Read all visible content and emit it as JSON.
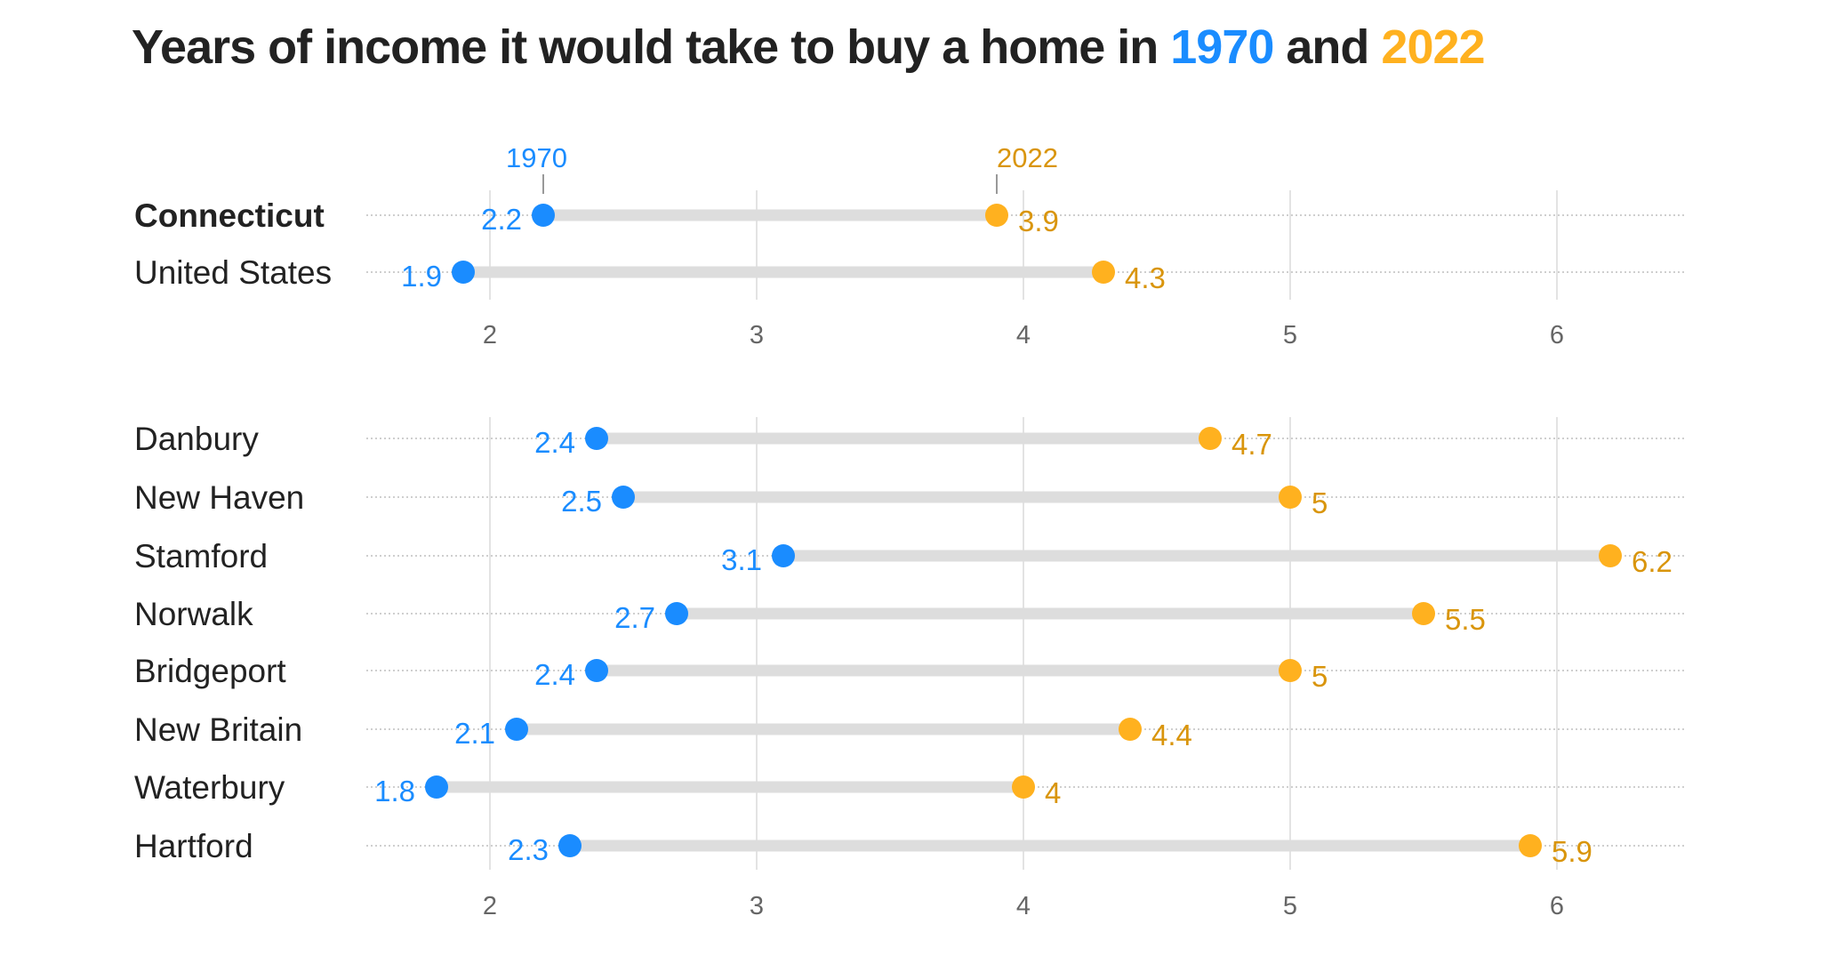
{
  "title": {
    "prefix": "Years of income it would take to buy a home in ",
    "year1": "1970",
    "mid": " and ",
    "year2": "2022"
  },
  "colors": {
    "1970": "#1a8cff",
    "2022": "#ffb11f",
    "label_2022": "#d9950c",
    "bar": "#dddddd"
  },
  "chart_data": [
    {
      "type": "dumbbell",
      "title": "Years of income it would take to buy a home in 1970 and 2022",
      "series_labels": [
        "1970",
        "2022"
      ],
      "xlim": [
        1.6,
        6.5
      ],
      "xticks": [
        2,
        3,
        4,
        5,
        6
      ],
      "grid": true,
      "rows": [
        {
          "label": "Connecticut",
          "bold": true,
          "v1970": 2.2,
          "v2022": 3.9,
          "l1970": "2.2",
          "l2022": "3.9"
        },
        {
          "label": "United States",
          "v1970": 1.9,
          "v2022": 4.3,
          "l1970": "1.9",
          "l2022": "4.3"
        }
      ]
    },
    {
      "type": "dumbbell",
      "xlim": [
        1.6,
        6.5
      ],
      "xticks": [
        2,
        3,
        4,
        5,
        6
      ],
      "grid": true,
      "rows": [
        {
          "label": "Danbury",
          "v1970": 2.4,
          "v2022": 4.7,
          "l1970": "2.4",
          "l2022": "4.7"
        },
        {
          "label": "New Haven",
          "v1970": 2.5,
          "v2022": 5,
          "l1970": "2.5",
          "l2022": "5"
        },
        {
          "label": "Stamford",
          "v1970": 3.1,
          "v2022": 6.2,
          "l1970": "3.1",
          "l2022": "6.2"
        },
        {
          "label": "Norwalk",
          "v1970": 2.7,
          "v2022": 5.5,
          "l1970": "2.7",
          "l2022": "5.5"
        },
        {
          "label": "Bridgeport",
          "v1970": 2.4,
          "v2022": 5,
          "l1970": "2.4",
          "l2022": "5"
        },
        {
          "label": "New Britain",
          "v1970": 2.1,
          "v2022": 4.4,
          "l1970": "2.1",
          "l2022": "4.4"
        },
        {
          "label": "Waterbury",
          "v1970": 1.8,
          "v2022": 4,
          "l1970": "1.8",
          "l2022": "4"
        },
        {
          "label": "Hartford",
          "v1970": 2.3,
          "v2022": 5.9,
          "l1970": "2.3",
          "l2022": "5.9"
        }
      ]
    }
  ]
}
